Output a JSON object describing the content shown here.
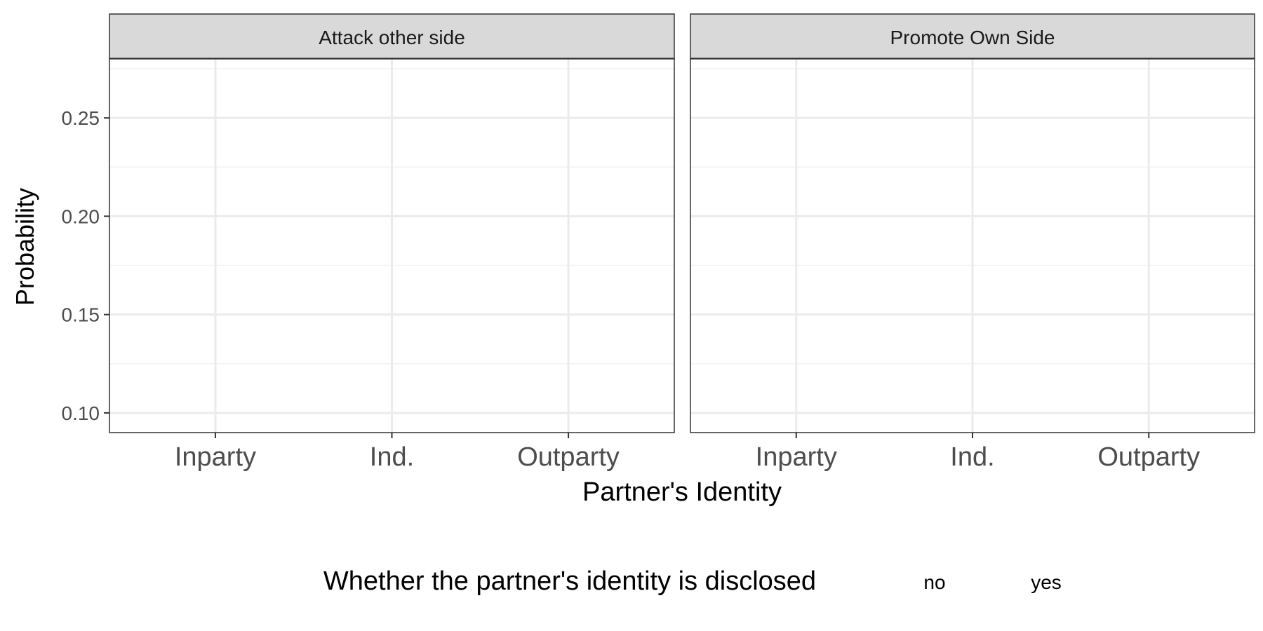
{
  "chart_data": {
    "type": "scatter",
    "ylabel": "Probability",
    "xlabel": "Partner's Identity",
    "categories": [
      "Inparty",
      "Ind.",
      "Outparty"
    ],
    "ylim": [
      0.09,
      0.28
    ],
    "y_ticks": [
      "0.10",
      "0.15",
      "0.20",
      "0.25"
    ],
    "y_tick_values": [
      0.1,
      0.15,
      0.2,
      0.25
    ],
    "grid": true,
    "facets": [
      "Attack other side",
      "Promote Own Side"
    ],
    "legend": {
      "title": "Whether the partner's identity is disclosed",
      "entries": [
        "no",
        "yes"
      ],
      "placement": "bottom"
    },
    "series": []
  },
  "colors": {
    "strip_fill": "#d9d9d9",
    "panel_border": "#333333",
    "grid_major": "#ebebeb",
    "grid_minor": "#f2f2f2",
    "tick_text": "#4d4d4d"
  }
}
